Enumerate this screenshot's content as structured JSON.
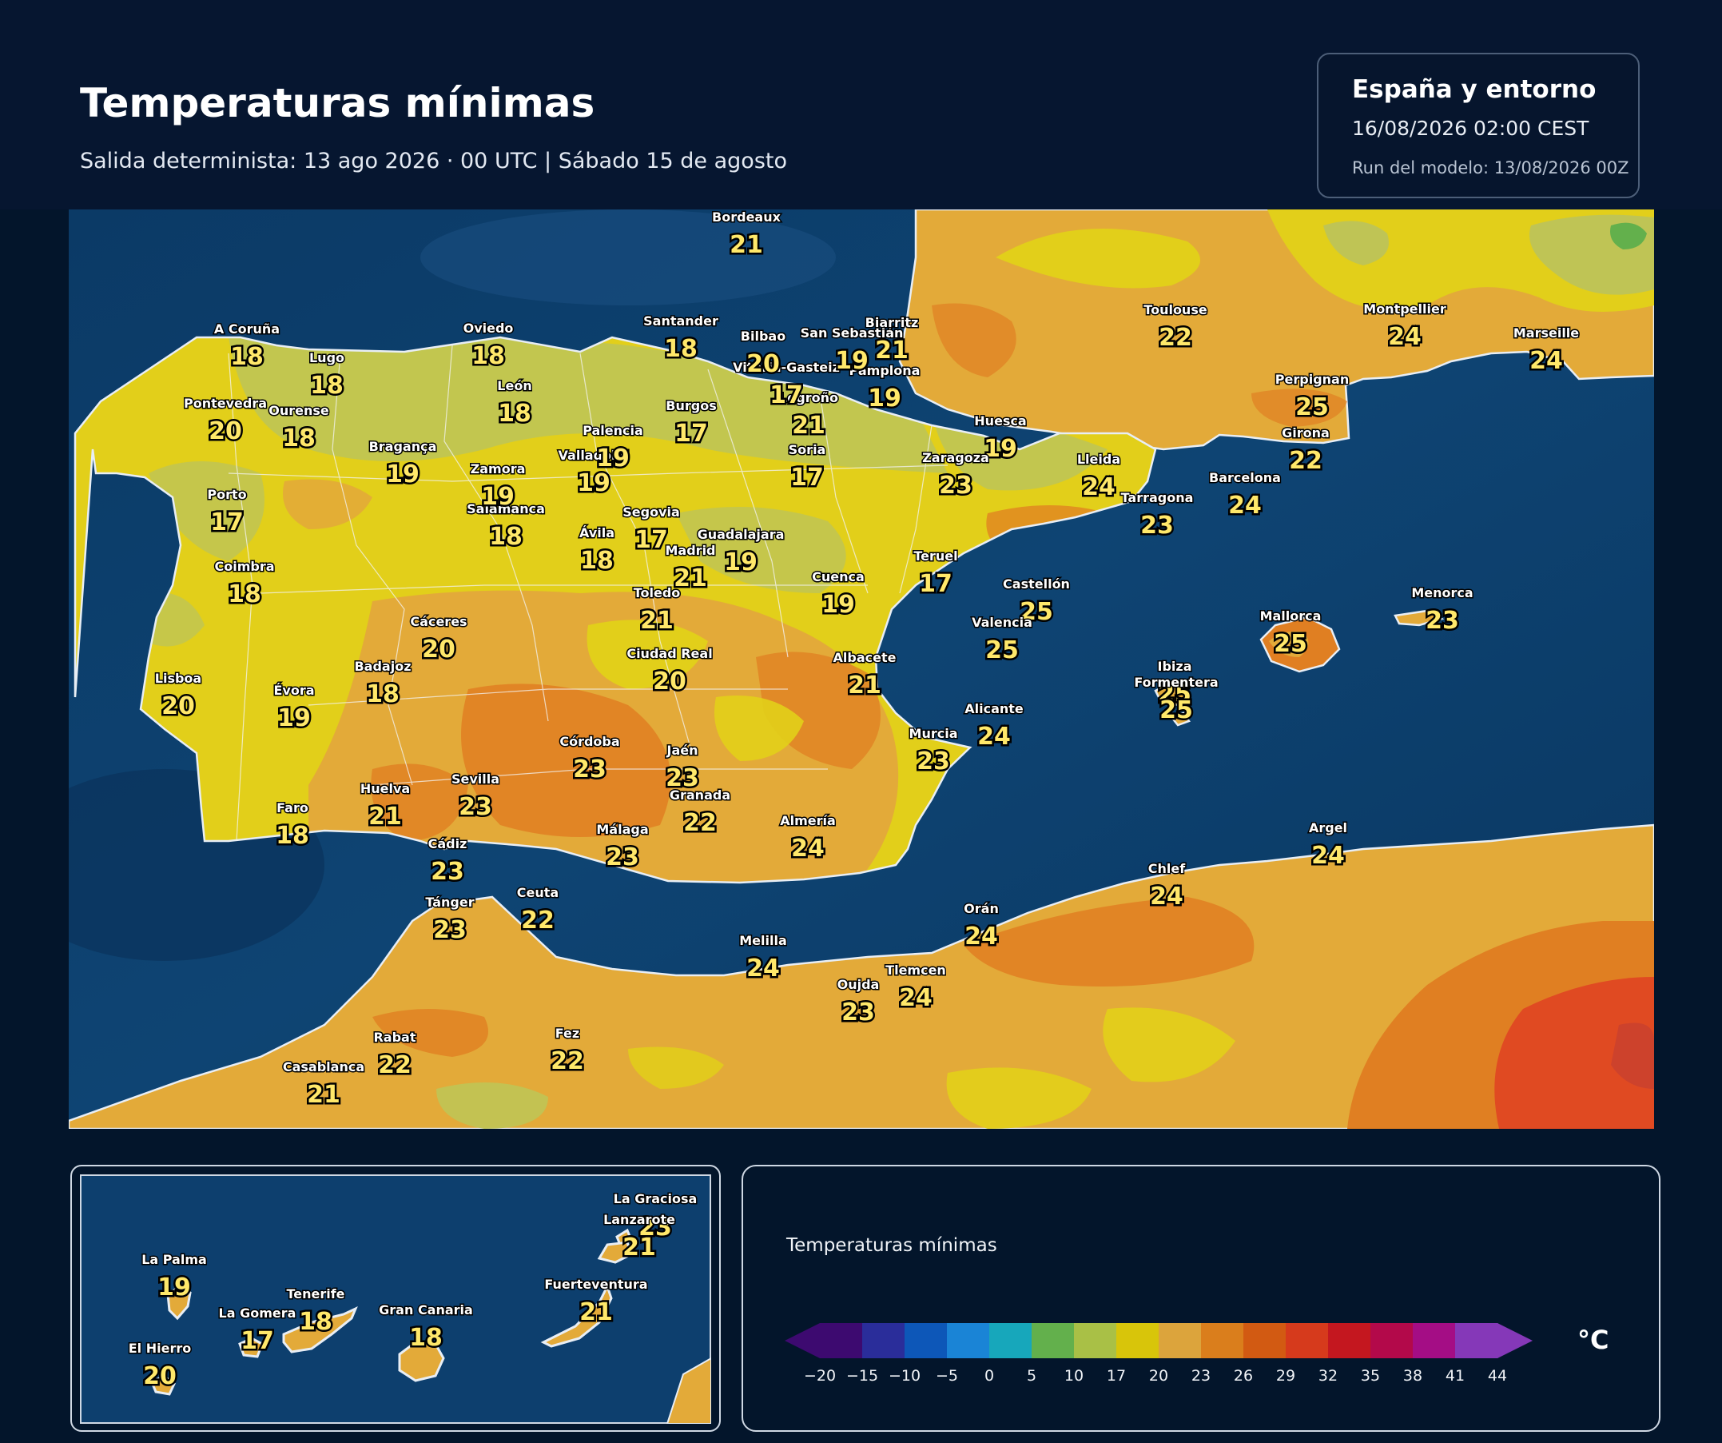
{
  "header": {
    "title": "Temperaturas mínimas",
    "subtitle": "Salida determinista: 13 ago 2026 · 00 UTC  |  Sábado 15 de agosto"
  },
  "info": {
    "region": "España y entorno",
    "datetime": "16/08/2026  02:00 CEST",
    "run": "Run del modelo: 13/08/2026 00Z"
  },
  "colors": {
    "sea": "#0d3f6e",
    "land_yellow": "#e2cf1a",
    "land_olive": "#bfc455",
    "land_amber": "#e3aa39",
    "land_orange": "#e07f22",
    "land_red": "#e04a22",
    "coast": "#e8eef5"
  },
  "main_map": {
    "stations": [
      {
        "name": "Bordeaux",
        "value": "21"
      },
      {
        "name": "Toulouse",
        "value": "22"
      },
      {
        "name": "Montpellier",
        "value": "24"
      },
      {
        "name": "Marseille",
        "value": "24"
      },
      {
        "name": "Perpignan",
        "value": "25"
      },
      {
        "name": "Girona",
        "value": "22"
      },
      {
        "name": "Barcelona",
        "value": "24"
      },
      {
        "name": "Lleida",
        "value": "24"
      },
      {
        "name": "Tarragona",
        "value": "23"
      },
      {
        "name": "Huesca",
        "value": "19"
      },
      {
        "name": "Zaragoza",
        "value": "23"
      },
      {
        "name": "Teruel",
        "value": "17"
      },
      {
        "name": "Castellón",
        "value": "25"
      },
      {
        "name": "Valencia",
        "value": "25"
      },
      {
        "name": "Alicante",
        "value": "24"
      },
      {
        "name": "Murcia",
        "value": "23"
      },
      {
        "name": "Albacete",
        "value": "21"
      },
      {
        "name": "Cuenca",
        "value": "19"
      },
      {
        "name": "Guadalajara",
        "value": "19"
      },
      {
        "name": "Madrid",
        "value": "21"
      },
      {
        "name": "Toledo",
        "value": "21"
      },
      {
        "name": "Ciudad Real",
        "value": "20"
      },
      {
        "name": "Segovia",
        "value": "17"
      },
      {
        "name": "Ávila",
        "value": "18"
      },
      {
        "name": "Salamanca",
        "value": "18"
      },
      {
        "name": "Valladolid",
        "value": "19"
      },
      {
        "name": "Palencia",
        "value": "19"
      },
      {
        "name": "Burgos",
        "value": "17"
      },
      {
        "name": "Soria",
        "value": "17"
      },
      {
        "name": "Logroño",
        "value": "21"
      },
      {
        "name": "Pamplona",
        "value": "19"
      },
      {
        "name": "Vitoria-Gasteiz",
        "value": "17"
      },
      {
        "name": "Bilbao",
        "value": "20"
      },
      {
        "name": "San Sebastián",
        "value": "19"
      },
      {
        "name": "Biarritz",
        "value": "21"
      },
      {
        "name": "Santander",
        "value": "18"
      },
      {
        "name": "Oviedo",
        "value": "18"
      },
      {
        "name": "León",
        "value": "18"
      },
      {
        "name": "Zamora",
        "value": "19"
      },
      {
        "name": "Bragança",
        "value": "19"
      },
      {
        "name": "A Coruña",
        "value": "18"
      },
      {
        "name": "Lugo",
        "value": "18"
      },
      {
        "name": "Ourense",
        "value": "18"
      },
      {
        "name": "Pontevedra",
        "value": "20"
      },
      {
        "name": "Porto",
        "value": "17"
      },
      {
        "name": "Coimbra",
        "value": "18"
      },
      {
        "name": "Lisboa",
        "value": "20"
      },
      {
        "name": "Évora",
        "value": "19"
      },
      {
        "name": "Faro",
        "value": "18"
      },
      {
        "name": "Badajoz",
        "value": "18"
      },
      {
        "name": "Cáceres",
        "value": "20"
      },
      {
        "name": "Huelva",
        "value": "21"
      },
      {
        "name": "Sevilla",
        "value": "23"
      },
      {
        "name": "Cádiz",
        "value": "23"
      },
      {
        "name": "Córdoba",
        "value": "23"
      },
      {
        "name": "Jaén",
        "value": "23"
      },
      {
        "name": "Granada",
        "value": "22"
      },
      {
        "name": "Málaga",
        "value": "23"
      },
      {
        "name": "Almería",
        "value": "24"
      },
      {
        "name": "Mallorca",
        "value": "25"
      },
      {
        "name": "Menorca",
        "value": "23"
      },
      {
        "name": "Ibiza",
        "value": "25"
      },
      {
        "name": "Formentera",
        "value": "25"
      },
      {
        "name": "Tánger",
        "value": "23"
      },
      {
        "name": "Ceuta",
        "value": "22"
      },
      {
        "name": "Melilla",
        "value": "24"
      },
      {
        "name": "Orán",
        "value": "24"
      },
      {
        "name": "Argel",
        "value": "24"
      },
      {
        "name": "Chlef",
        "value": "24"
      },
      {
        "name": "Oujda",
        "value": "23"
      },
      {
        "name": "Tlemcen",
        "value": "24"
      },
      {
        "name": "Fez",
        "value": "22"
      },
      {
        "name": "Rabat",
        "value": "22"
      },
      {
        "name": "Casablanca",
        "value": "21"
      }
    ]
  },
  "canarias": {
    "stations": [
      {
        "name": "La Graciosa",
        "value": "23"
      },
      {
        "name": "Lanzarote",
        "value": "21"
      },
      {
        "name": "Fuerteventura",
        "value": "21"
      },
      {
        "name": "Gran Canaria",
        "value": "18"
      },
      {
        "name": "Tenerife",
        "value": "18"
      },
      {
        "name": "La Gomera",
        "value": "17"
      },
      {
        "name": "La Palma",
        "value": "19"
      },
      {
        "name": "El Hierro",
        "value": "20"
      }
    ]
  },
  "legend": {
    "title": "Temperaturas mínimas",
    "unit": "°C",
    "ticks": [
      "−20",
      "−15",
      "−10",
      "−5",
      "0",
      "5",
      "10",
      "17",
      "20",
      "23",
      "26",
      "29",
      "32",
      "35",
      "38",
      "41",
      "44"
    ],
    "colors": [
      "#3d0a70",
      "#2a2d9a",
      "#0d57b8",
      "#1a84d6",
      "#17a7bb",
      "#63b04c",
      "#a9c046",
      "#d8c50a",
      "#dca43c",
      "#da7e1c",
      "#d25a12",
      "#d63a1c",
      "#c4171f",
      "#b3094a",
      "#a40d85",
      "#8538b8"
    ]
  }
}
